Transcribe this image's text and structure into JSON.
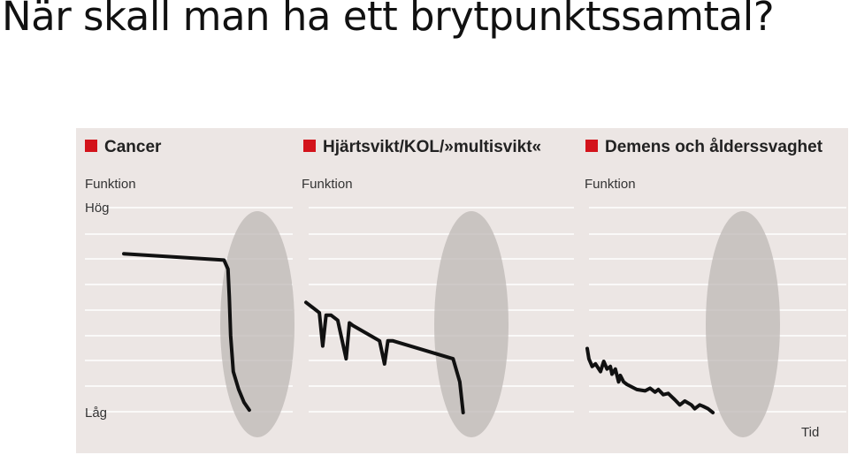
{
  "slide": {
    "title": "När skall man ha ett brytpunktssamtal?"
  },
  "colors": {
    "background": "#ffffff",
    "figure_background": "#ece6e4",
    "gridline": "#ffffff",
    "curve": "#111111",
    "marker": "#d3131b",
    "ellipse": "#bdb8b6"
  },
  "chart_data": [
    {
      "type": "line",
      "title": "Cancer",
      "ylabel": "Funktion",
      "y_high_label": "Hög",
      "y_low_label": "Låg",
      "ylim": [
        0,
        8
      ],
      "xlim": [
        0,
        10
      ],
      "grid": true,
      "highlight": "ellipse-near-end",
      "series": [
        {
          "x": [
            0,
            7.5,
            7.8,
            7.9,
            8.0,
            8.2,
            8.6,
            9.0,
            9.4
          ],
          "y": [
            6.2,
            5.95,
            5.6,
            4.5,
            3.0,
            1.6,
            0.9,
            0.4,
            0.1
          ]
        }
      ]
    },
    {
      "type": "line",
      "title": "Hjärtsvikt/KOL/»multisvikt«",
      "ylabel": "Funktion",
      "ylim": [
        0,
        8
      ],
      "xlim": [
        0,
        10
      ],
      "grid": true,
      "highlight": "ellipse-near-end",
      "series": [
        {
          "x": [
            0,
            0.4,
            0.8,
            1.0,
            1.2,
            1.5,
            1.9,
            2.4,
            2.6,
            2.8,
            4.4,
            4.7,
            4.9,
            5.2,
            8.8,
            9.2,
            9.4
          ],
          "y": [
            4.3,
            4.1,
            3.9,
            2.6,
            3.8,
            3.8,
            3.6,
            2.1,
            3.5,
            3.4,
            2.8,
            1.9,
            2.8,
            2.8,
            2.1,
            1.2,
            0.0
          ]
        }
      ]
    },
    {
      "type": "line",
      "title": "Demens och ålderssvaghet",
      "ylabel": "Funktion",
      "xlabel": "Tid",
      "ylim": [
        0,
        8
      ],
      "xlim": [
        0,
        10
      ],
      "grid": true,
      "highlight": "ellipse-near-end",
      "series": [
        {
          "x": [
            0,
            0.1,
            0.3,
            0.5,
            0.8,
            1.0,
            1.2,
            1.4,
            1.5,
            1.7,
            1.9,
            2.0,
            2.2,
            2.4,
            3.0,
            3.5,
            3.8,
            4.1,
            4.3,
            4.6,
            4.9,
            5.3,
            5.6,
            5.9,
            6.3,
            6.5,
            6.8,
            7.0,
            7.3,
            7.6
          ],
          "y": [
            2.5,
            2.1,
            1.8,
            1.9,
            1.6,
            2.0,
            1.7,
            1.8,
            1.5,
            1.7,
            1.2,
            1.45,
            1.2,
            1.1,
            0.9,
            0.85,
            0.95,
            0.8,
            0.9,
            0.7,
            0.75,
            0.5,
            0.3,
            0.45,
            0.3,
            0.15,
            0.3,
            0.25,
            0.15,
            0.0
          ]
        }
      ]
    }
  ]
}
